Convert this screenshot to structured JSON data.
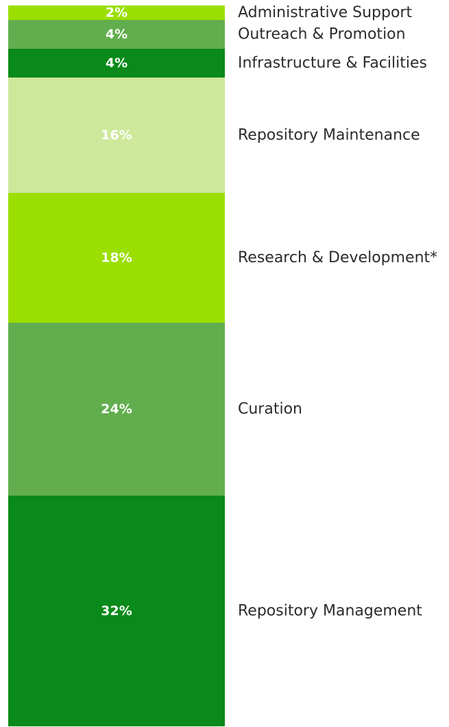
{
  "chart_data": {
    "type": "bar",
    "orientation": "stacked-vertical",
    "title": "",
    "xlabel": "",
    "ylabel": "",
    "unit": "%",
    "ylim": [
      0,
      100
    ],
    "legend": "none",
    "grid": false,
    "segments_top_to_bottom": [
      {
        "label": "Administrative Support",
        "value": 2,
        "value_label": "2%",
        "color": "#9bdf00"
      },
      {
        "label": "Outreach & Promotion",
        "value": 4,
        "value_label": "4%",
        "color": "#62ae4e"
      },
      {
        "label": "Infrastructure & Facilities",
        "value": 4,
        "value_label": "4%",
        "color": "#0a8a1a"
      },
      {
        "label": "Repository Maintenance",
        "value": 16,
        "value_label": "16%",
        "color": "#cde89b"
      },
      {
        "label": "Research & Development*",
        "value": 18,
        "value_label": "18%",
        "color": "#9bdf00"
      },
      {
        "label": "Curation",
        "value": 24,
        "value_label": "24%",
        "color": "#62ae4e"
      },
      {
        "label": "Repository Management",
        "value": 32,
        "value_label": "32%",
        "color": "#0a8a1a"
      }
    ]
  }
}
